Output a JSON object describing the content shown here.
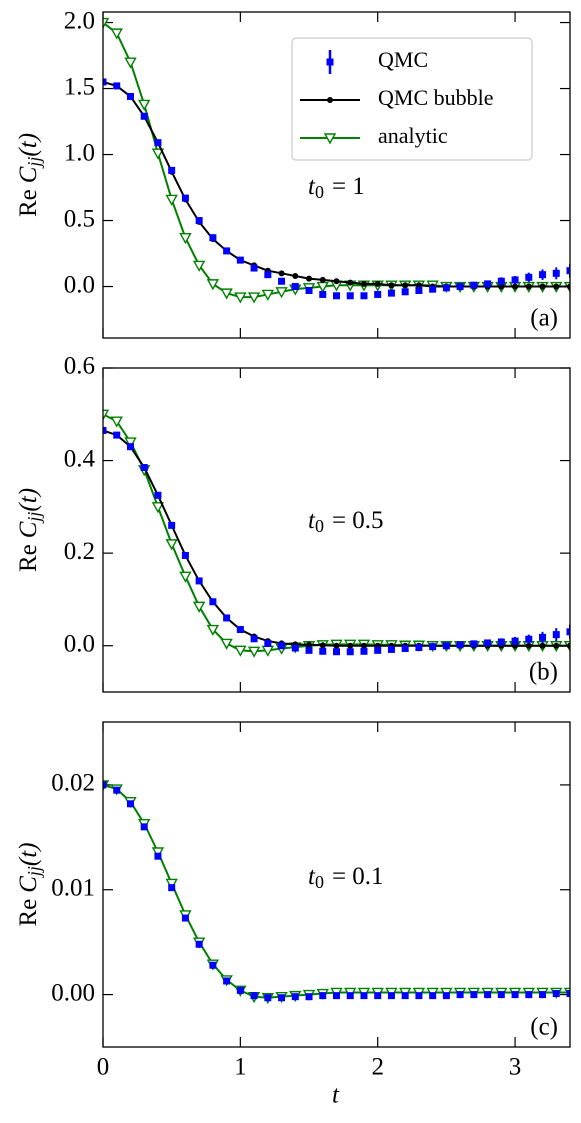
{
  "chart_data": [
    {
      "type": "line",
      "ylabel": {
        "prefix": "Re",
        "symbol": "C",
        "sub": "jj",
        "suffix": "(t)"
      },
      "annotation": {
        "text": "t",
        "sub": "0",
        "rest": "= 1"
      },
      "panel_label": "(a)",
      "legend": "upper right",
      "xlim": [
        0,
        3.4
      ],
      "ylim": [
        -0.39,
        2.08
      ],
      "yticks": [
        {
          "value": 0,
          "label": "0.0"
        },
        {
          "value": 0.5,
          "label": "0.5"
        },
        {
          "value": 1,
          "label": "1.0"
        },
        {
          "value": 1.5,
          "label": "1.5"
        },
        {
          "value": 2,
          "label": "2.0"
        }
      ],
      "x": [
        0,
        0.1,
        0.2,
        0.3,
        0.4,
        0.5,
        0.6,
        0.7,
        0.8,
        0.9,
        1,
        1.1,
        1.2,
        1.3,
        1.4,
        1.5,
        1.6,
        1.7,
        1.8,
        1.9,
        2,
        2.1,
        2.2,
        2.3,
        2.4,
        2.5,
        2.6,
        2.7,
        2.8,
        2.9,
        3,
        3.1,
        3.2,
        3.3,
        3.4
      ],
      "series": [
        {
          "name": "QMC",
          "color": "#0000ff",
          "marker": "square",
          "line": false,
          "values": [
            1.55,
            1.52,
            1.44,
            1.29,
            1.09,
            0.88,
            0.67,
            0.5,
            0.37,
            0.27,
            0.2,
            0.14,
            0.09,
            0.04,
            0,
            -0.03,
            -0.06,
            -0.07,
            -0.07,
            -0.07,
            -0.06,
            -0.05,
            -0.04,
            -0.03,
            -0.02,
            -0.01,
            0,
            0.01,
            0.02,
            0.04,
            0.05,
            0.07,
            0.09,
            0.1,
            0.12
          ],
          "errors": [
            0.01,
            0.01,
            0.01,
            0.01,
            0.01,
            0.01,
            0.01,
            0.01,
            0.01,
            0.01,
            0.01,
            0.01,
            0.01,
            0.01,
            0.01,
            0.01,
            0.01,
            0.01,
            0.01,
            0.01,
            0.01,
            0.015,
            0.015,
            0.015,
            0.02,
            0.02,
            0.02,
            0.025,
            0.025,
            0.03,
            0.03,
            0.035,
            0.04,
            0.045,
            0.05
          ]
        },
        {
          "name": "QMC bubble",
          "color": "#000000",
          "marker": "circle",
          "line": true,
          "values": [
            1.55,
            1.52,
            1.44,
            1.29,
            1.09,
            0.87,
            0.66,
            0.49,
            0.36,
            0.27,
            0.2,
            0.16,
            0.12,
            0.1,
            0.08,
            0.06,
            0.05,
            0.04,
            0.03,
            0.02,
            0.02,
            0.01,
            0.01,
            0.01,
            0,
            0,
            0,
            0,
            0,
            0,
            0,
            0,
            0,
            0,
            0
          ]
        },
        {
          "name": "analytic",
          "color": "#008000",
          "marker": "triangle-down",
          "line": true,
          "values": [
            2,
            1.92,
            1.7,
            1.38,
            1.01,
            0.66,
            0.37,
            0.16,
            0.02,
            -0.05,
            -0.08,
            -0.08,
            -0.06,
            -0.04,
            -0.02,
            -0.01,
            0,
            0.01,
            0.01,
            0.01,
            0.01,
            0.01,
            0.01,
            0.01,
            0.01,
            0,
            0,
            0,
            0,
            0,
            0,
            0,
            0,
            0,
            0
          ]
        }
      ]
    },
    {
      "type": "line",
      "ylabel": {
        "prefix": "Re",
        "symbol": "C",
        "sub": "jj",
        "suffix": "(t)"
      },
      "annotation": {
        "text": "t",
        "sub": "0",
        "rest": "= 0.5"
      },
      "panel_label": "(b)",
      "xlim": [
        0,
        3.4
      ],
      "ylim": [
        -0.1,
        0.6
      ],
      "yticks": [
        {
          "value": 0,
          "label": "0.0"
        },
        {
          "value": 0.2,
          "label": "0.2"
        },
        {
          "value": 0.4,
          "label": "0.4"
        },
        {
          "value": 0.6,
          "label": "0.6"
        }
      ],
      "x": [
        0,
        0.1,
        0.2,
        0.3,
        0.4,
        0.5,
        0.6,
        0.7,
        0.8,
        0.9,
        1,
        1.1,
        1.2,
        1.3,
        1.4,
        1.5,
        1.6,
        1.7,
        1.8,
        1.9,
        2,
        2.1,
        2.2,
        2.3,
        2.4,
        2.5,
        2.6,
        2.7,
        2.8,
        2.9,
        3,
        3.1,
        3.2,
        3.3,
        3.4
      ],
      "series": [
        {
          "color": "#0000ff",
          "marker": "square",
          "line": false,
          "values": [
            0.465,
            0.455,
            0.43,
            0.385,
            0.325,
            0.26,
            0.195,
            0.14,
            0.095,
            0.06,
            0.035,
            0.015,
            0.005,
            0,
            -0.005,
            -0.01,
            -0.012,
            -0.013,
            -0.013,
            -0.012,
            -0.01,
            -0.008,
            -0.006,
            -0.004,
            -0.002,
            0,
            0.002,
            0.004,
            0.006,
            0.008,
            0.01,
            0.014,
            0.018,
            0.024,
            0.03
          ],
          "errors": [
            0.003,
            0.003,
            0.003,
            0.003,
            0.003,
            0.003,
            0.003,
            0.003,
            0.003,
            0.003,
            0.003,
            0.003,
            0.003,
            0.003,
            0.003,
            0.003,
            0.003,
            0.003,
            0.003,
            0.003,
            0.003,
            0.004,
            0.004,
            0.004,
            0.005,
            0.005,
            0.006,
            0.006,
            0.007,
            0.008,
            0.009,
            0.01,
            0.012,
            0.014,
            0.016
          ]
        },
        {
          "color": "#000000",
          "marker": "circle",
          "line": true,
          "values": [
            0.465,
            0.455,
            0.43,
            0.385,
            0.325,
            0.26,
            0.195,
            0.14,
            0.095,
            0.06,
            0.035,
            0.02,
            0.01,
            0.005,
            0.003,
            0.002,
            0.001,
            0,
            0,
            0,
            0,
            0,
            0,
            0,
            0,
            0,
            0,
            0,
            0,
            0,
            0,
            0,
            0,
            0,
            0
          ]
        },
        {
          "color": "#008000",
          "marker": "triangle-down",
          "line": true,
          "values": [
            0.5,
            0.485,
            0.44,
            0.38,
            0.3,
            0.22,
            0.15,
            0.085,
            0.035,
            0.005,
            -0.01,
            -0.012,
            -0.01,
            -0.006,
            -0.003,
            0,
            0.002,
            0.003,
            0.003,
            0.003,
            0.002,
            0.002,
            0.001,
            0.001,
            0,
            0,
            0,
            0,
            0,
            0,
            0,
            0,
            0,
            0,
            0
          ]
        }
      ]
    },
    {
      "type": "line",
      "ylabel": {
        "prefix": "Re",
        "symbol": "C",
        "sub": "jj",
        "suffix": "(t)"
      },
      "annotation": {
        "text": "t",
        "sub": "0",
        "rest": "= 0.1"
      },
      "panel_label": "(c)",
      "xlabel": "t",
      "xlim": [
        0,
        3.4
      ],
      "ylim": [
        -0.005,
        0.026
      ],
      "xticks": [
        0,
        1,
        2,
        3
      ],
      "yticks": [
        {
          "value": 0,
          "label": "0.00"
        },
        {
          "value": 0.01,
          "label": "0.01"
        },
        {
          "value": 0.02,
          "label": "0.02"
        }
      ],
      "x": [
        0,
        0.1,
        0.2,
        0.3,
        0.4,
        0.5,
        0.6,
        0.7,
        0.8,
        0.9,
        1,
        1.1,
        1.2,
        1.3,
        1.4,
        1.5,
        1.6,
        1.7,
        1.8,
        1.9,
        2,
        2.1,
        2.2,
        2.3,
        2.4,
        2.5,
        2.6,
        2.7,
        2.8,
        2.9,
        3,
        3.1,
        3.2,
        3.3,
        3.4
      ],
      "series": [
        {
          "color": "#0000ff",
          "marker": "square",
          "line": false,
          "values": [
            0.02,
            0.0195,
            0.0182,
            0.016,
            0.0132,
            0.0102,
            0.0073,
            0.0048,
            0.0028,
            0.0013,
            0.0004,
            -0.0001,
            -0.0003,
            -0.0003,
            -0.0002,
            -0.0002,
            -0.0001,
            -0.0001,
            -0.0001,
            -0.0001,
            -0.0001,
            -0.0001,
            -0.0001,
            -0.0001,
            -0.0001,
            -0.0001,
            0,
            0,
            0,
            0,
            0,
            0,
            0,
            0.0001,
            0.0001
          ],
          "errors": [
            0.0001,
            0.0001,
            0.0001,
            0.0001,
            0.0001,
            0.0001,
            0.0001,
            0.0001,
            0.0001,
            0.0001,
            0.0001,
            0.0001,
            0.0001,
            0.0001,
            0.0001,
            0.0001,
            0.0001,
            0.0001,
            0.0001,
            0.0001,
            0.0001,
            0.0001,
            0.0001,
            0.0001,
            0.0002,
            0.0002,
            0.0002,
            0.0002,
            0.0002,
            0.0002,
            0.0002,
            0.0003,
            0.0003,
            0.0003,
            0.0003
          ]
        },
        {
          "color": "#008000",
          "marker": "triangle-down",
          "line": true,
          "values": [
            0.02,
            0.0196,
            0.0184,
            0.0163,
            0.0136,
            0.0106,
            0.0076,
            0.005,
            0.0029,
            0.0014,
            0.0004,
            -0.0002,
            -0.0003,
            -0.0002,
            -0.0001,
            0,
            0.0001,
            0.0002,
            0.0002,
            0.0002,
            0.0002,
            0.0002,
            0.0002,
            0.0002,
            0.0002,
            0.0002,
            0.0002,
            0.0002,
            0.0002,
            0.0002,
            0.0002,
            0.0002,
            0.0002,
            0.0002,
            0.0002
          ]
        }
      ]
    }
  ]
}
